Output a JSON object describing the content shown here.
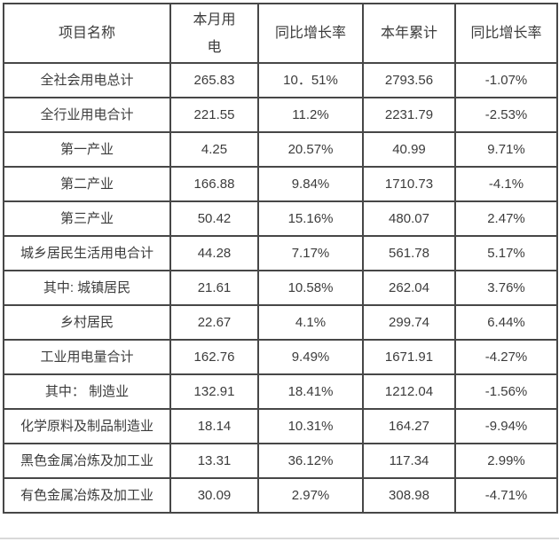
{
  "table": {
    "headers": [
      "项目名称",
      "本月用\n电",
      "同比增长率",
      "本年累计",
      "同比增长率"
    ],
    "rows": [
      {
        "name": "全社会用电总计",
        "month": "265.83",
        "month_yoy": "10．51%",
        "ytd": "2793.56",
        "ytd_yoy": "-1.07%"
      },
      {
        "name": "全行业用电合计",
        "month": "221.55",
        "month_yoy": "11.2%",
        "ytd": "2231.79",
        "ytd_yoy": "-2.53%"
      },
      {
        "name": "第一产业",
        "month": "4.25",
        "month_yoy": "20.57%",
        "ytd": "40.99",
        "ytd_yoy": "9.71%"
      },
      {
        "name": "第二产业",
        "month": "166.88",
        "month_yoy": "9.84%",
        "ytd": "1710.73",
        "ytd_yoy": "-4.1%"
      },
      {
        "name": "第三产业",
        "month": "50.42",
        "month_yoy": "15.16%",
        "ytd": "480.07",
        "ytd_yoy": "2.47%"
      },
      {
        "name": "城乡居民生活用电合计",
        "month": "44.28",
        "month_yoy": "7.17%",
        "ytd": "561.78",
        "ytd_yoy": "5.17%"
      },
      {
        "name": "其中: 城镇居民",
        "month": "21.61",
        "month_yoy": "10.58%",
        "ytd": "262.04",
        "ytd_yoy": "3.76%"
      },
      {
        "name": "乡村居民",
        "month": "22.67",
        "month_yoy": "4.1%",
        "ytd": "299.74",
        "ytd_yoy": "6.44%"
      },
      {
        "name": "工业用电量合计",
        "month": "162.76",
        "month_yoy": "9.49%",
        "ytd": "1671.91",
        "ytd_yoy": "-4.27%"
      },
      {
        "name": "其中： 制造业",
        "month": "132.91",
        "month_yoy": "18.41%",
        "ytd": "1212.04",
        "ytd_yoy": "-1.56%"
      },
      {
        "name": "化学原料及制品制造业",
        "month": "18.14",
        "month_yoy": "10.31%",
        "ytd": "164.27",
        "ytd_yoy": "-9.94%"
      },
      {
        "name": "黑色金属冶炼及加工业",
        "month": "13.31",
        "month_yoy": "36.12%",
        "ytd": "117.34",
        "ytd_yoy": "2.99%"
      },
      {
        "name": "有色金属冶炼及加工业",
        "month": "30.09",
        "month_yoy": "2.97%",
        "ytd": "308.98",
        "ytd_yoy": "-4.71%"
      }
    ]
  },
  "colors": {
    "border": "#474747",
    "text": "#3c3c3c",
    "bottom_line": "#d9d9d9"
  }
}
